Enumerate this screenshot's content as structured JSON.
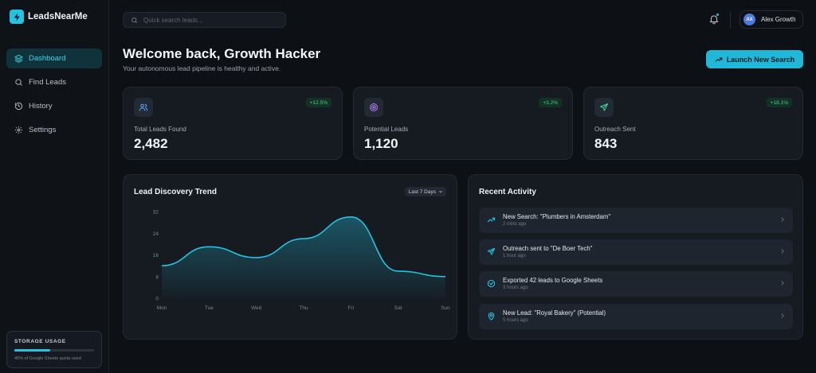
{
  "brand": {
    "name": "LeadsNearMe"
  },
  "sidebar": {
    "items": [
      {
        "label": "Dashboard",
        "icon": "layers-icon",
        "active": true
      },
      {
        "label": "Find Leads",
        "icon": "search-icon",
        "active": false
      },
      {
        "label": "History",
        "icon": "history-icon",
        "active": false
      },
      {
        "label": "Settings",
        "icon": "gear-icon",
        "active": false
      }
    ],
    "storage": {
      "title": "STORAGE USAGE",
      "percent": 45,
      "note": "45% of Google Sheets quota used"
    }
  },
  "topbar": {
    "search_placeholder": "Quick search leads...",
    "user": {
      "initials": "AX",
      "name": "Alex Growth"
    }
  },
  "header": {
    "title": "Welcome back, Growth Hacker",
    "subtitle": "Your autonomous lead pipeline is healthy and active.",
    "launch_label": "Launch New Search"
  },
  "stats": [
    {
      "label": "Total Leads Found",
      "value": "2,482",
      "change": "+12.5%",
      "icon": "users-icon",
      "icon_color": "#5aa8ff"
    },
    {
      "label": "Potential Leads",
      "value": "1,120",
      "change": "+3.2%",
      "icon": "target-icon",
      "icon_color": "#b07cf0"
    },
    {
      "label": "Outreach Sent",
      "value": "843",
      "change": "+18.1%",
      "icon": "send-icon",
      "icon_color": "#3fd38b"
    }
  ],
  "chart": {
    "title": "Lead Discovery Trend",
    "range": "Last 7 Days"
  },
  "chart_data": {
    "type": "area",
    "categories": [
      "Mon",
      "Tue",
      "Wed",
      "Thu",
      "Fri",
      "Sat",
      "Sun"
    ],
    "values": [
      12,
      19,
      15,
      22,
      30,
      10,
      8
    ],
    "yticks": [
      0,
      8,
      16,
      24,
      32
    ],
    "ylim": [
      0,
      32
    ],
    "color": "#22c4e0",
    "grid": false
  },
  "activity": {
    "title": "Recent Activity",
    "items": [
      {
        "text": "New Search: \"Plumbers in Amsterdam\"",
        "time": "2 mins ago",
        "icon": "trend-icon"
      },
      {
        "text": "Outreach sent to \"De Boer Tech\"",
        "time": "1 hour ago",
        "icon": "send-icon"
      },
      {
        "text": "Exported 42 leads to Google Sheets",
        "time": "3 hours ago",
        "icon": "check-circle-icon"
      },
      {
        "text": "New Lead: \"Royal Bakery\" (Potential)",
        "time": "5 hours ago",
        "icon": "pin-icon"
      }
    ]
  },
  "colors": {
    "accent": "#22c4e0",
    "positive": "#3fd38b",
    "background": "#0d1015"
  }
}
